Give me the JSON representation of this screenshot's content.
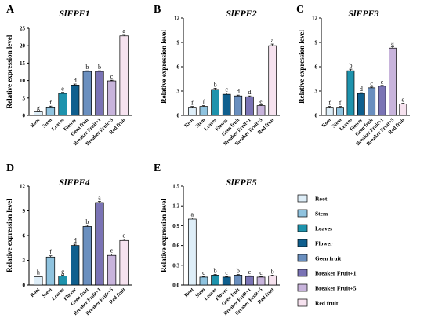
{
  "colors": {
    "Root": "#deeef8",
    "Stem": "#8fc3df",
    "Leaves": "#1e93ad",
    "Flower": "#0f5f8e",
    "Geen fruit": "#6a8fbf",
    "Breaker Fruit+1": "#7a73b5",
    "Breaker Fruit+5": "#c8b4dc",
    "Red fruit": "#f6e2ef"
  },
  "legend": [
    "Root",
    "Stem",
    "Leaves",
    "Flower",
    "Geen fruit",
    "Breaker Fruit+1",
    "Breaker Fruit+5",
    "Red fruit"
  ],
  "chart_data": [
    {
      "type": "bar",
      "panel": "A",
      "title": "SlFPF1",
      "ylabel": "Relative expression level",
      "categories": [
        "Root",
        "Stem",
        "Leaves",
        "Flower",
        "Geen fruit",
        "Breaker Fruit+1",
        "Breaker Fruit+5",
        "Red fruit"
      ],
      "values": [
        1.0,
        2.4,
        6.3,
        8.7,
        12.6,
        12.6,
        9.9,
        22.8
      ],
      "errors": [
        0.15,
        0.25,
        0.3,
        0.3,
        0.2,
        0.2,
        0.2,
        0.4
      ],
      "letters": [
        "g",
        "f",
        "e",
        "d",
        "b",
        "b",
        "c",
        "a"
      ],
      "ylim": [
        0,
        25
      ],
      "yticks": [
        0,
        5,
        10,
        15,
        20,
        25
      ]
    },
    {
      "type": "bar",
      "panel": "B",
      "title": "SlFPF2",
      "ylabel": "Relative expression level",
      "categories": [
        "Root",
        "Stem",
        "Leaves",
        "Flower",
        "Geen fruit",
        "Breaker Fruit+1",
        "Breaker Fruit+5",
        "Red fruit"
      ],
      "values": [
        1.0,
        1.1,
        3.2,
        2.6,
        2.4,
        2.3,
        1.2,
        8.6
      ],
      "errors": [
        0.1,
        0.1,
        0.15,
        0.15,
        0.1,
        0.1,
        0.1,
        0.2
      ],
      "letters": [
        "f",
        "f",
        "b",
        "c",
        "d",
        "d",
        "e",
        "a"
      ],
      "ylim": [
        0,
        12
      ],
      "yticks": [
        0,
        3,
        6,
        9,
        12
      ]
    },
    {
      "type": "bar",
      "panel": "C",
      "title": "SlFPF3",
      "ylabel": "Relative expression level",
      "categories": [
        "Root",
        "Stem",
        "Leaves",
        "Flower",
        "Geen fruit",
        "Breaker Fruit+1",
        "Breaker Fruit+5",
        "Red fruit"
      ],
      "values": [
        1.0,
        1.0,
        5.5,
        2.7,
        3.4,
        3.6,
        8.3,
        1.4
      ],
      "errors": [
        0.1,
        0.1,
        0.2,
        0.1,
        0.1,
        0.1,
        0.15,
        0.1
      ],
      "letters": [
        "f",
        "f",
        "b",
        "d",
        "c",
        "c",
        "a",
        "e"
      ],
      "ylim": [
        0,
        12
      ],
      "yticks": [
        0,
        3,
        6,
        9,
        12
      ]
    },
    {
      "type": "bar",
      "panel": "D",
      "title": "SlFPF4",
      "ylabel": "Relative expression level",
      "categories": [
        "Root",
        "Stem",
        "Leaves",
        "Flower",
        "Geen fruit",
        "Breaker Fruit+1",
        "Breaker Fruit+5",
        "Red fruit"
      ],
      "values": [
        1.0,
        3.4,
        1.1,
        4.8,
        7.1,
        10.0,
        3.6,
        5.4
      ],
      "errors": [
        0.1,
        0.15,
        0.1,
        0.15,
        0.15,
        0.15,
        0.15,
        0.15
      ],
      "letters": [
        "h",
        "f",
        "g",
        "d",
        "b",
        "a",
        "e",
        "c"
      ],
      "ylim": [
        0,
        12
      ],
      "yticks": [
        0,
        3,
        6,
        9,
        12
      ]
    },
    {
      "type": "bar",
      "panel": "E",
      "title": "SlFPF5",
      "ylabel": "Relative expression level",
      "categories": [
        "Root",
        "Stem",
        "Leaves",
        "Flower",
        "Geen fruit",
        "Breaker Fruit+1",
        "Breaker Fruit+5",
        "Red fruit"
      ],
      "values": [
        1.0,
        0.12,
        0.15,
        0.12,
        0.15,
        0.13,
        0.12,
        0.14
      ],
      "errors": [
        0.02,
        0.01,
        0.01,
        0.01,
        0.01,
        0.01,
        0.01,
        0.01
      ],
      "letters": [
        "a",
        "c",
        "b",
        "c",
        "b",
        "c",
        "c",
        "b"
      ],
      "ylim": [
        0,
        1.5
      ],
      "yticks": [
        0.0,
        0.3,
        0.6,
        0.9,
        1.2,
        1.5
      ],
      "ytick_labels": [
        "0.0",
        "0.3",
        "0.6",
        "0.9",
        "1.2",
        "1.5"
      ]
    }
  ]
}
